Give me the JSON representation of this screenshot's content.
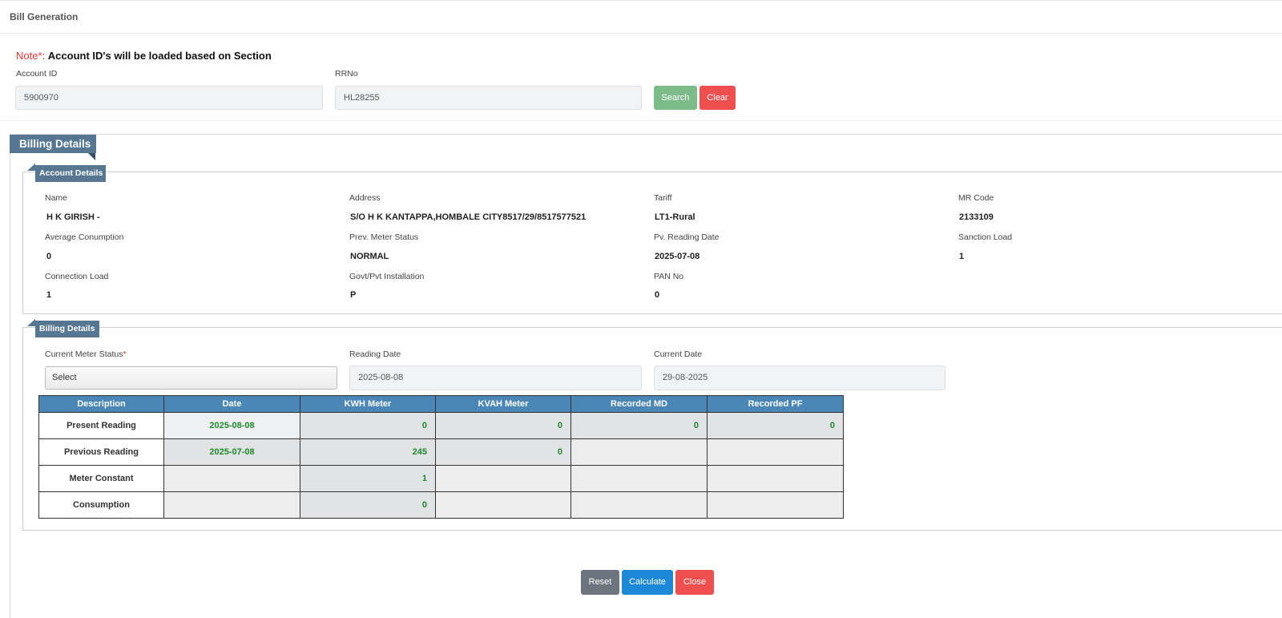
{
  "header": {
    "title": "Bill Generation"
  },
  "note": {
    "label": "Note",
    "required_mark": "*",
    "colon": ":",
    "text": "Account ID's will be loaded based on Section"
  },
  "search": {
    "account_id_label": "Account ID",
    "account_id_value": "5900970",
    "rrno_label": "RRNo",
    "rrno_value": "HL28255",
    "search_button": "Search",
    "clear_button": "Clear"
  },
  "billing_section_title": "Billing Details",
  "account_details": {
    "title": "Account Details",
    "fields": [
      {
        "label": "Name",
        "value": "H K GIRISH  -"
      },
      {
        "label": "Address",
        "value": "S/O H K KANTAPPA,HOMBALE CITY8517/29/8517577521"
      },
      {
        "label": "Tariff",
        "value": "LT1-Rural"
      },
      {
        "label": "MR Code",
        "value": "2133109"
      },
      {
        "label": "Average Conumption",
        "value": "0"
      },
      {
        "label": "Prev. Meter Status",
        "value": "NORMAL"
      },
      {
        "label": "Pv. Reading Date",
        "value": "2025-07-08"
      },
      {
        "label": "Sanction Load",
        "value": "1"
      },
      {
        "label": "Connection Load",
        "value": "1"
      },
      {
        "label": "Govt/Pvt Installation",
        "value": "P"
      },
      {
        "label": "PAN No",
        "value": "0"
      }
    ]
  },
  "billing_details": {
    "title": "Billing Details",
    "current_meter_status_label": "Current Meter Status",
    "current_meter_status_required": "*",
    "current_meter_status_value": "Select",
    "reading_date_label": "Reading Date",
    "reading_date_value": "2025-08-08",
    "current_date_label": "Current Date",
    "current_date_value": "29-08-2025"
  },
  "readings_table": {
    "headers": [
      "Description",
      "Date",
      "KWH Meter",
      "KVAH Meter",
      "Recorded MD",
      "Recorded PF"
    ],
    "rows": [
      {
        "description": "Present Reading",
        "date": "2025-08-08",
        "kwh": "0",
        "kvah": "0",
        "md": "0",
        "pf": "0"
      },
      {
        "description": "Previous Reading",
        "date": "2025-07-08",
        "kwh": "245",
        "kvah": "0",
        "md": "",
        "pf": ""
      },
      {
        "description": "Meter Constant",
        "date": "",
        "kwh": "1",
        "kvah": "",
        "md": "",
        "pf": ""
      },
      {
        "description": "Consumption",
        "date": "",
        "kwh": "0",
        "kvah": "",
        "md": "",
        "pf": ""
      }
    ]
  },
  "actions": {
    "reset": "Reset",
    "calculate": "Calculate",
    "close": "Close"
  },
  "colors": {
    "section_header": "#567691",
    "table_header": "#4a87b6",
    "value_green": "#1d8a2c",
    "search_button": "#7dbb8a",
    "danger_button": "#ef4f4f",
    "reset_button": "#6c757d",
    "calculate_button": "#1e88d8"
  }
}
